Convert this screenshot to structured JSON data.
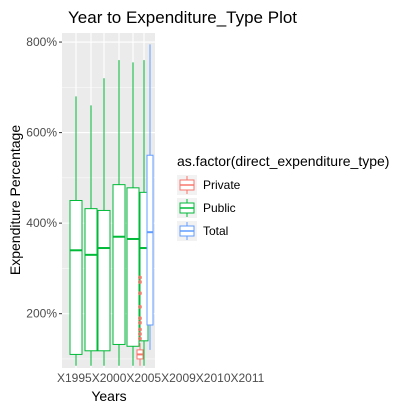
{
  "chart_data": {
    "type": "boxplot",
    "title": "Year to Expenditure_Type Plot",
    "xlabel": "Years",
    "ylabel": "Expenditure Percentage",
    "y_tick_labels": [
      "200%",
      "400%",
      "600%",
      "800%"
    ],
    "y_tick_values": [
      200,
      400,
      600,
      800
    ],
    "ylim": [
      80,
      820
    ],
    "categories": [
      "X1995",
      "X2000",
      "X2005",
      "X2009",
      "X2010",
      "X2011"
    ],
    "x_tick_label_text": "X1995X2000X2005X2009X2010X2011",
    "grid": true,
    "legend_position": "right",
    "legend": {
      "title": "as.factor(direct_expenditure_type)",
      "entries": [
        "Private",
        "Public",
        "Total"
      ]
    },
    "colors": {
      "Private": "#F8766D",
      "Public": "#00BA38",
      "Total": "#619CFF",
      "panel_background": "#EBEBEB",
      "grid": "#FFFFFF"
    },
    "series": [
      {
        "name": "Public",
        "boxes": [
          {
            "category": "X1995",
            "whisker_low": 85,
            "q1": 110,
            "median": 340,
            "q3": 450,
            "whisker_high": 680
          },
          {
            "category": "X2000",
            "whisker_low": 85,
            "q1": 118,
            "median": 330,
            "q3": 432,
            "whisker_high": 660
          },
          {
            "category": "X2005",
            "whisker_low": 85,
            "q1": 118,
            "median": 345,
            "q3": 428,
            "whisker_high": 720
          },
          {
            "category": "X2009",
            "whisker_low": 85,
            "q1": 132,
            "median": 370,
            "q3": 485,
            "whisker_high": 760
          },
          {
            "category": "X2010",
            "whisker_low": 85,
            "q1": 128,
            "median": 365,
            "q3": 478,
            "whisker_high": 755
          },
          {
            "category": "X2011",
            "whisker_low": 85,
            "q1": 140,
            "median": 345,
            "q3": 468,
            "whisker_high": 760
          }
        ]
      },
      {
        "name": "Private",
        "boxes": [
          {
            "category": "X2011",
            "whisker_low": 85,
            "q1": 100,
            "median": 110,
            "q3": 120,
            "whisker_high": 135,
            "outliers": [
              280,
              270,
              245,
              215,
              190,
              180,
              165,
              155,
              145
            ]
          }
        ]
      },
      {
        "name": "Total",
        "boxes": [
          {
            "category": "X2011",
            "whisker_low": 120,
            "q1": 175,
            "median": 380,
            "q3": 550,
            "whisker_high": 795
          }
        ]
      }
    ]
  }
}
